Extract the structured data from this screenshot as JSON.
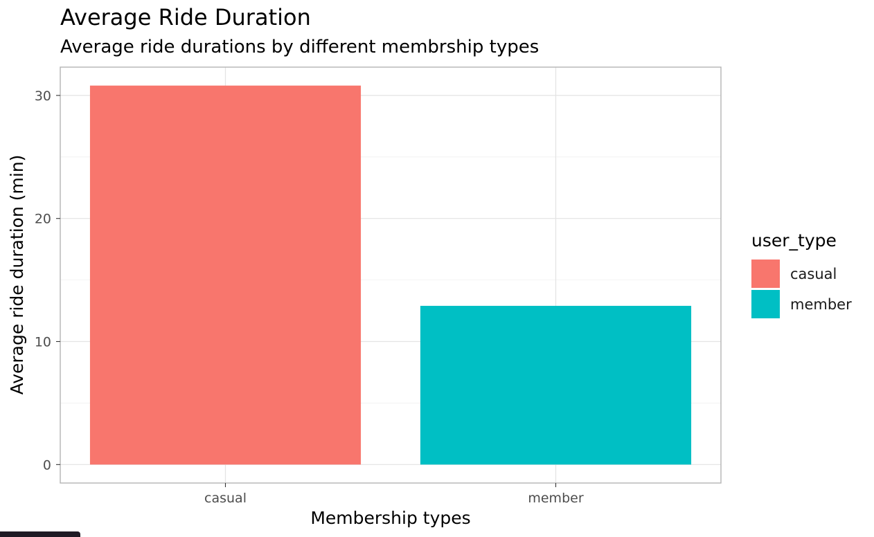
{
  "chart_data": {
    "type": "bar",
    "title": "Average Ride Duration",
    "subtitle": "Average ride durations by different membrship types",
    "xlabel": "Membership types",
    "ylabel": "Average ride duration (min)",
    "categories": [
      "casual",
      "member"
    ],
    "values": [
      30.8,
      12.9
    ],
    "ylim": [
      -1.5,
      32.3
    ],
    "yticks": [
      0,
      10,
      20,
      30
    ],
    "grid": true,
    "legend": {
      "title": "user_type",
      "placement": "right",
      "entries": [
        "casual",
        "member"
      ]
    },
    "colors": [
      "#f8766d",
      "#00bfc4"
    ]
  }
}
